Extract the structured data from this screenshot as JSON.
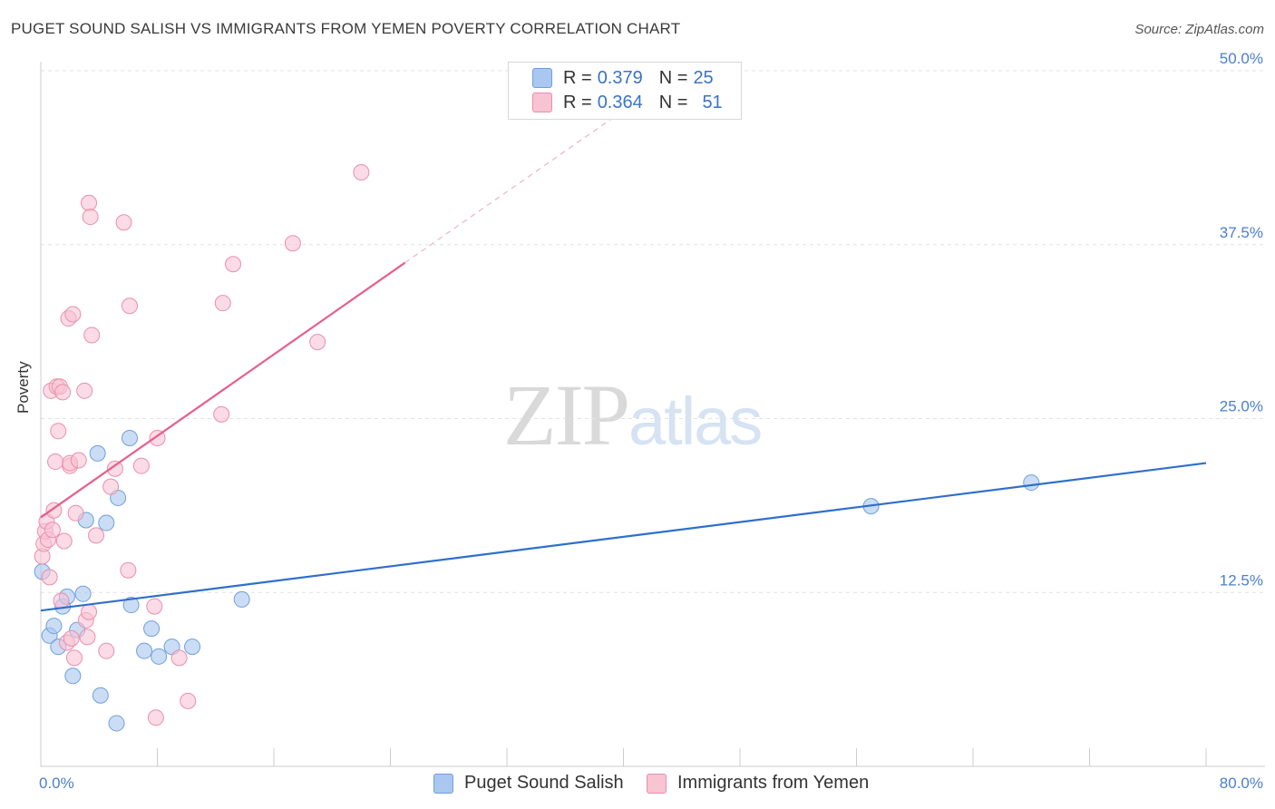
{
  "title": "PUGET SOUND SALISH VS IMMIGRANTS FROM YEMEN POVERTY CORRELATION CHART",
  "source": "Source: ZipAtlas.com",
  "watermark": {
    "zip": "ZIP",
    "atlas": "atlas"
  },
  "legend": {
    "rows": [
      {
        "r_label": "R = ",
        "r_value": "0.379",
        "n_label": "N = ",
        "n_value": "25",
        "color": "#a9c7ef",
        "border": "#6f9fdc"
      },
      {
        "r_label": "R = ",
        "r_value": "0.364",
        "n_label": "N = ",
        "n_value": "51",
        "color": "#f8c3d3",
        "border": "#e98fab"
      }
    ]
  },
  "bottom_legend": [
    {
      "label": "Puget Sound Salish",
      "color": "#a9c7ef",
      "border": "#6f9fdc"
    },
    {
      "label": "Immigrants from Yemen",
      "color": "#f8c3d3",
      "border": "#e98fab"
    }
  ],
  "chart_data": {
    "type": "scatter",
    "title": "PUGET SOUND SALISH VS IMMIGRANTS FROM YEMEN POVERTY CORRELATION CHART",
    "ylabel": "Poverty",
    "xlabel": "",
    "xlim": [
      0,
      80
    ],
    "ylim": [
      0,
      50
    ],
    "x_tick_labels": [
      "0.0%",
      "80.0%"
    ],
    "y_ticks": [
      12.5,
      25.0,
      37.5,
      50.0
    ],
    "y_tick_labels": [
      "12.5%",
      "25.0%",
      "37.5%",
      "50.0%"
    ],
    "grid": "horizontal dashed",
    "legend_position": "top-center",
    "series": [
      {
        "name": "Puget Sound Salish",
        "color": "#a9c7ef",
        "stroke": "#6f9fdc",
        "line_color": "#2f6fcc",
        "trend": {
          "x0": 0,
          "y0": 11.2,
          "x1": 80,
          "y1": 21.8
        },
        "points": [
          [
            0.1,
            14.0
          ],
          [
            0.6,
            9.4
          ],
          [
            0.9,
            10.1
          ],
          [
            1.2,
            8.6
          ],
          [
            1.5,
            11.5
          ],
          [
            1.8,
            12.2
          ],
          [
            2.2,
            6.5
          ],
          [
            2.5,
            9.8
          ],
          [
            2.9,
            12.4
          ],
          [
            3.1,
            17.7
          ],
          [
            3.9,
            22.5
          ],
          [
            4.1,
            5.1
          ],
          [
            4.5,
            17.5
          ],
          [
            5.2,
            3.1
          ],
          [
            5.3,
            19.3
          ],
          [
            6.1,
            23.6
          ],
          [
            6.2,
            11.6
          ],
          [
            7.1,
            8.3
          ],
          [
            7.6,
            9.9
          ],
          [
            8.1,
            7.9
          ],
          [
            9.0,
            8.6
          ],
          [
            10.4,
            8.6
          ],
          [
            13.8,
            12.0
          ],
          [
            57.0,
            18.7
          ],
          [
            68.0,
            20.4
          ]
        ]
      },
      {
        "name": "Immigrants from Yemen",
        "color": "#f8c3d3",
        "stroke": "#e98fab",
        "line_color": "#e4608a",
        "trend": {
          "x0": 0,
          "y0": 17.9,
          "x1": 25,
          "y1": 36.2
        },
        "trend_ext": {
          "x0": 25,
          "y0": 36.2,
          "x1": 42,
          "y1": 48.6
        },
        "points": [
          [
            0.1,
            15.1
          ],
          [
            0.2,
            16.0
          ],
          [
            0.3,
            16.9
          ],
          [
            0.4,
            17.6
          ],
          [
            0.5,
            16.3
          ],
          [
            0.6,
            13.6
          ],
          [
            0.7,
            27.0
          ],
          [
            0.9,
            18.4
          ],
          [
            1.0,
            21.9
          ],
          [
            1.1,
            27.3
          ],
          [
            1.2,
            24.1
          ],
          [
            1.3,
            27.3
          ],
          [
            1.4,
            11.9
          ],
          [
            1.5,
            26.9
          ],
          [
            1.6,
            16.2
          ],
          [
            1.8,
            8.9
          ],
          [
            1.9,
            32.2
          ],
          [
            2.0,
            21.6
          ],
          [
            2.0,
            21.8
          ],
          [
            2.1,
            9.2
          ],
          [
            2.2,
            32.5
          ],
          [
            2.3,
            7.8
          ],
          [
            2.4,
            18.2
          ],
          [
            3.0,
            27.0
          ],
          [
            3.1,
            10.5
          ],
          [
            3.2,
            9.3
          ],
          [
            3.3,
            11.1
          ],
          [
            3.3,
            40.5
          ],
          [
            3.4,
            39.5
          ],
          [
            3.5,
            31.0
          ],
          [
            3.8,
            16.6
          ],
          [
            4.5,
            8.3
          ],
          [
            4.8,
            20.1
          ],
          [
            5.1,
            21.4
          ],
          [
            5.7,
            39.1
          ],
          [
            6.0,
            14.1
          ],
          [
            6.1,
            33.1
          ],
          [
            6.9,
            21.6
          ],
          [
            7.8,
            11.5
          ],
          [
            7.9,
            3.5
          ],
          [
            8.0,
            23.6
          ],
          [
            9.5,
            7.8
          ],
          [
            10.1,
            4.7
          ],
          [
            12.4,
            25.3
          ],
          [
            12.5,
            33.3
          ],
          [
            13.2,
            36.1
          ],
          [
            17.3,
            37.6
          ],
          [
            19.0,
            30.5
          ],
          [
            22.0,
            42.7
          ],
          [
            0.8,
            17.0
          ],
          [
            2.6,
            22.0
          ]
        ]
      }
    ]
  }
}
